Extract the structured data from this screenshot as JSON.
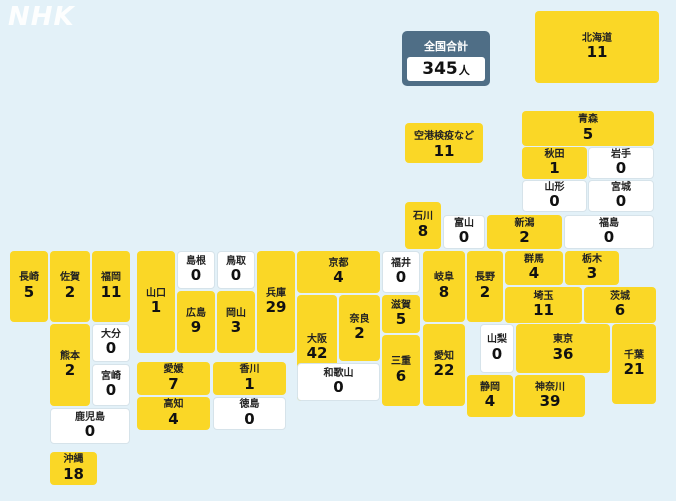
{
  "brand": "NHK",
  "total": {
    "label": "全国合計",
    "value": "345",
    "unit": "人"
  },
  "airport": {
    "name": "空港検疫など",
    "count": "11"
  },
  "prefectures": [
    {
      "id": "hokkaido",
      "name": "北海道",
      "count": "11"
    },
    {
      "id": "aomori",
      "name": "青森",
      "count": "5"
    },
    {
      "id": "akita",
      "name": "秋田",
      "count": "1"
    },
    {
      "id": "iwate",
      "name": "岩手",
      "count": "0"
    },
    {
      "id": "yamagata",
      "name": "山形",
      "count": "0"
    },
    {
      "id": "miyagi",
      "name": "宮城",
      "count": "0"
    },
    {
      "id": "ishikawa",
      "name": "石川",
      "count": "8"
    },
    {
      "id": "toyama",
      "name": "富山",
      "count": "0"
    },
    {
      "id": "niigata",
      "name": "新潟",
      "count": "2"
    },
    {
      "id": "fukushima",
      "name": "福島",
      "count": "0"
    },
    {
      "id": "nagasaki",
      "name": "長崎",
      "count": "5"
    },
    {
      "id": "saga",
      "name": "佐賀",
      "count": "2"
    },
    {
      "id": "fukuoka",
      "name": "福岡",
      "count": "11"
    },
    {
      "id": "yamaguchi",
      "name": "山口",
      "count": "1"
    },
    {
      "id": "shimane",
      "name": "島根",
      "count": "0"
    },
    {
      "id": "tottori",
      "name": "鳥取",
      "count": "0"
    },
    {
      "id": "hiroshima",
      "name": "広島",
      "count": "9"
    },
    {
      "id": "okayama",
      "name": "岡山",
      "count": "3"
    },
    {
      "id": "hyogo",
      "name": "兵庫",
      "count": "29"
    },
    {
      "id": "kyoto",
      "name": "京都",
      "count": "4"
    },
    {
      "id": "fukui",
      "name": "福井",
      "count": "0"
    },
    {
      "id": "gifu",
      "name": "岐阜",
      "count": "8"
    },
    {
      "id": "nagano",
      "name": "長野",
      "count": "2"
    },
    {
      "id": "gunma",
      "name": "群馬",
      "count": "4"
    },
    {
      "id": "tochigi",
      "name": "栃木",
      "count": "3"
    },
    {
      "id": "ibaraki",
      "name": "茨城",
      "count": "6"
    },
    {
      "id": "saitama",
      "name": "埼玉",
      "count": "11"
    },
    {
      "id": "osaka",
      "name": "大阪",
      "count": "42"
    },
    {
      "id": "nara",
      "name": "奈良",
      "count": "2"
    },
    {
      "id": "shiga",
      "name": "滋賀",
      "count": "5"
    },
    {
      "id": "mie",
      "name": "三重",
      "count": "6"
    },
    {
      "id": "aichi",
      "name": "愛知",
      "count": "22"
    },
    {
      "id": "yamanashi",
      "name": "山梨",
      "count": "0"
    },
    {
      "id": "tokyo",
      "name": "東京",
      "count": "36"
    },
    {
      "id": "chiba",
      "name": "千葉",
      "count": "21"
    },
    {
      "id": "shizuoka",
      "name": "静岡",
      "count": "4"
    },
    {
      "id": "kanagawa",
      "name": "神奈川",
      "count": "39"
    },
    {
      "id": "wakayama",
      "name": "和歌山",
      "count": "0"
    },
    {
      "id": "kumamoto",
      "name": "熊本",
      "count": "2"
    },
    {
      "id": "oita",
      "name": "大分",
      "count": "0"
    },
    {
      "id": "miyazaki",
      "name": "宮崎",
      "count": "0"
    },
    {
      "id": "ehime",
      "name": "愛媛",
      "count": "7"
    },
    {
      "id": "kagawa",
      "name": "香川",
      "count": "1"
    },
    {
      "id": "kochi",
      "name": "高知",
      "count": "4"
    },
    {
      "id": "tokushima",
      "name": "徳島",
      "count": "0"
    },
    {
      "id": "kagoshima",
      "name": "鹿児島",
      "count": "0"
    },
    {
      "id": "okinawa",
      "name": "沖縄",
      "count": "18"
    }
  ]
}
